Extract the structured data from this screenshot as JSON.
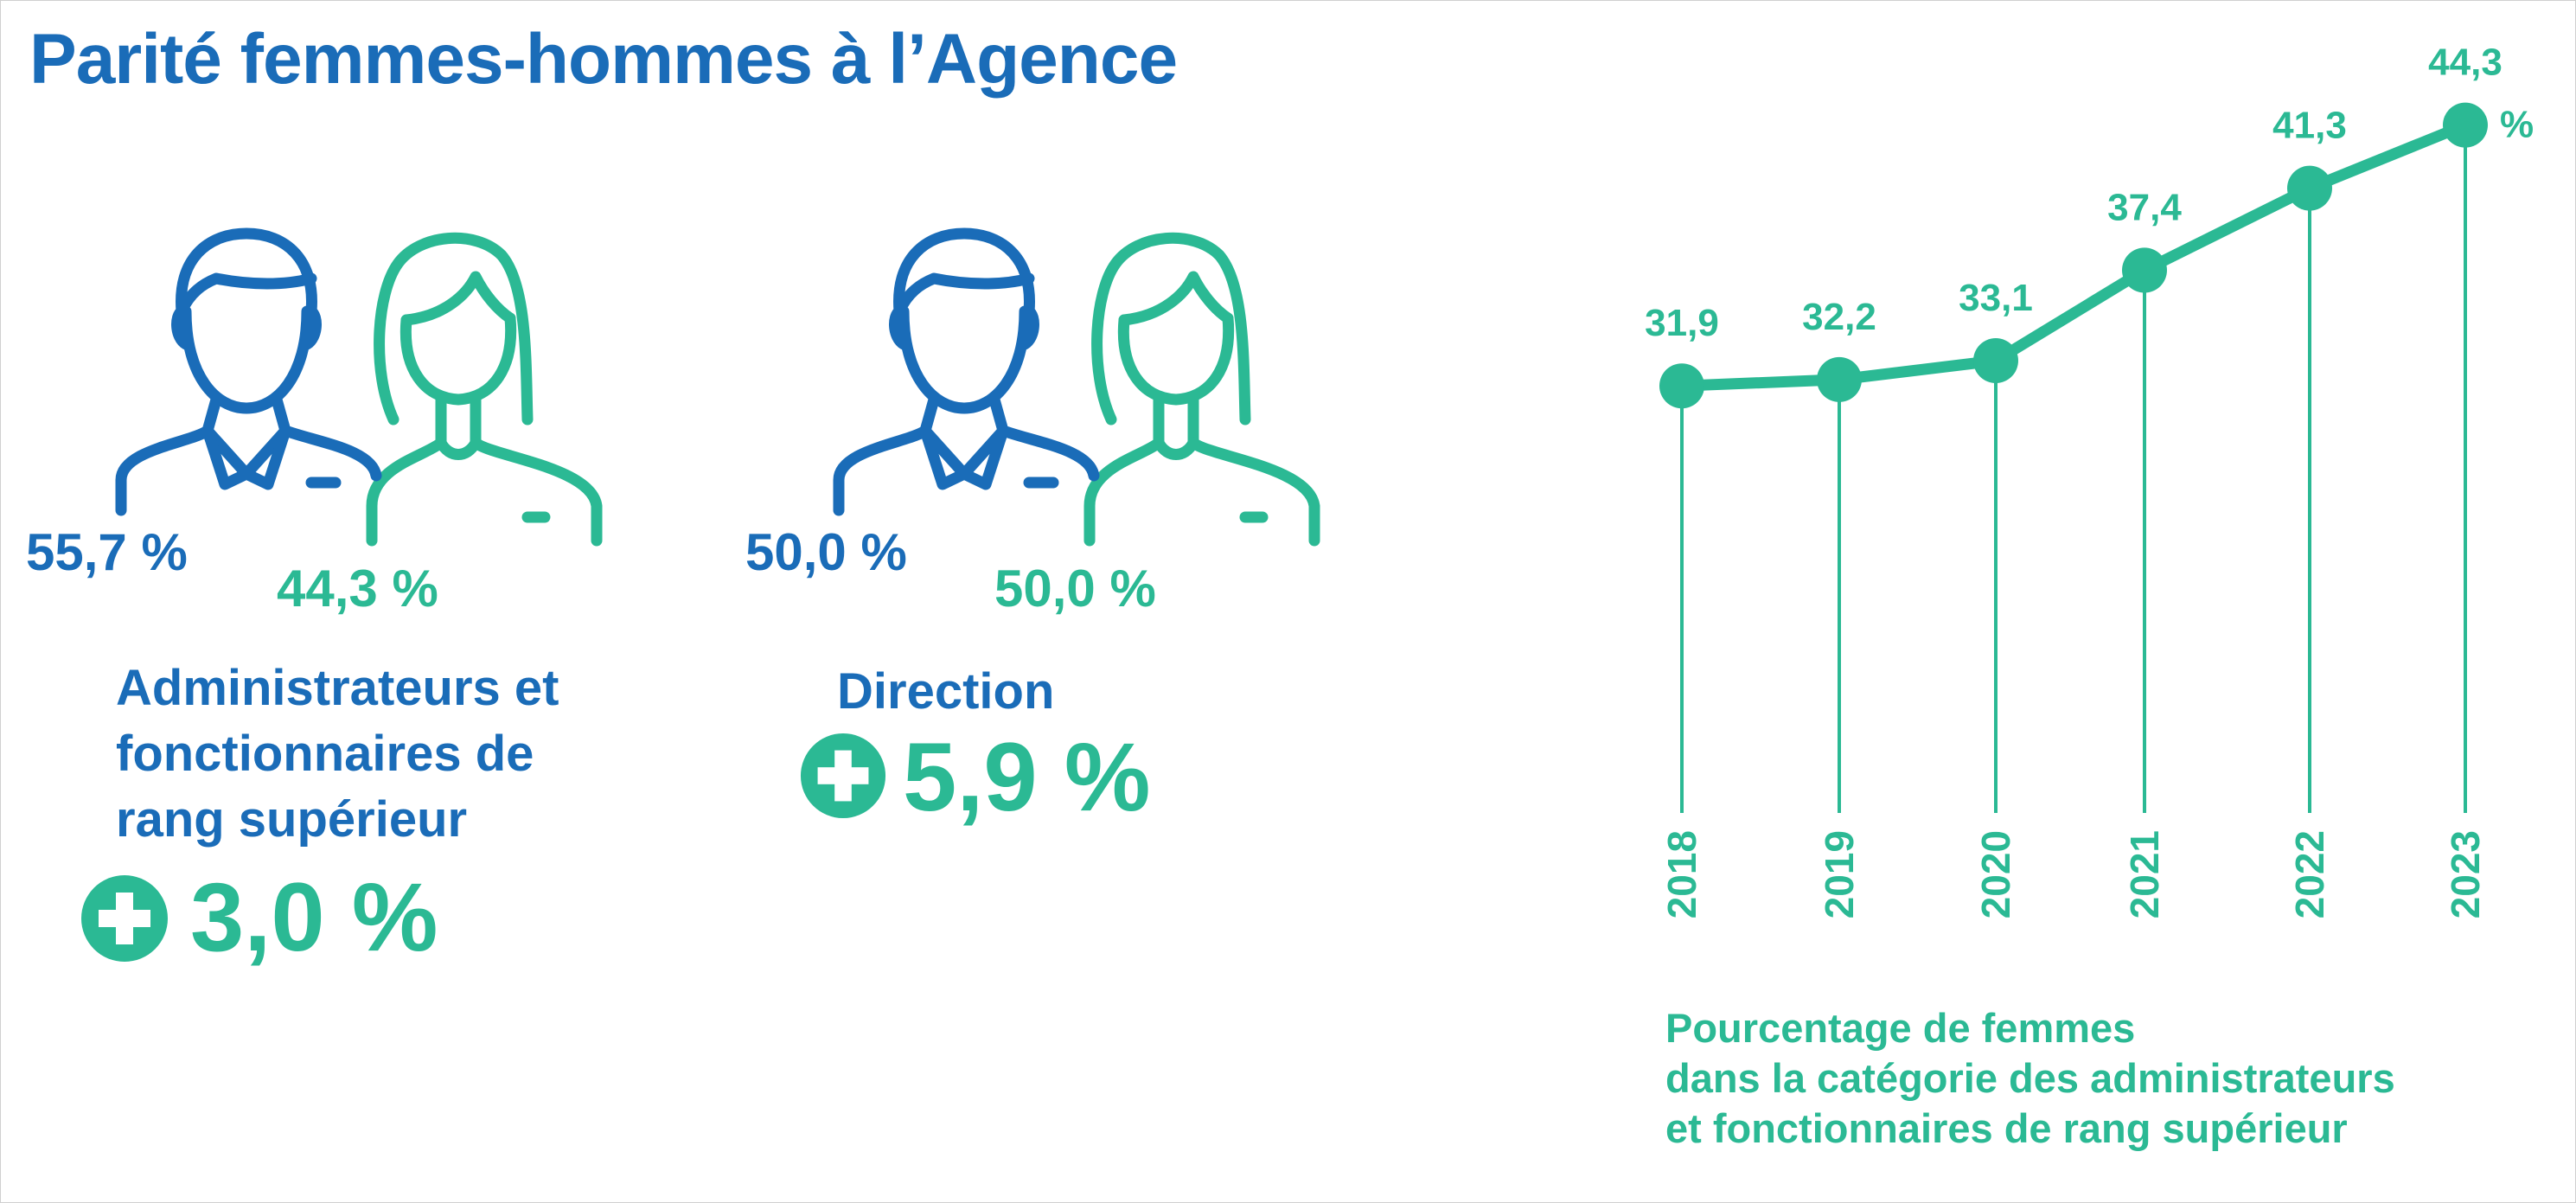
{
  "title": "Parité femmes-hommes à l’Agence",
  "colors": {
    "blue": "#1a6cb8",
    "green": "#2bb994"
  },
  "group1": {
    "men_pct": "55,7 %",
    "women_pct": "44,3 %",
    "label_lines": [
      "Administrateurs et",
      "fonctionnaires de",
      "rang supérieur"
    ],
    "change": "3,0 %",
    "icons": [
      "man-icon",
      "woman-icon",
      "plus-circle-icon"
    ]
  },
  "group2": {
    "men_pct": "50,0 %",
    "women_pct": "50,0 %",
    "label": "Direction",
    "change": "5,9 %",
    "icons": [
      "man-icon",
      "woman-icon",
      "plus-circle-icon"
    ]
  },
  "chart_data": {
    "type": "line",
    "x": [
      "2018",
      "2019",
      "2020",
      "2021",
      "2022",
      "2023"
    ],
    "values": [
      31.9,
      32.2,
      33.1,
      37.4,
      41.3,
      44.3
    ],
    "value_labels": [
      "31,9",
      "32,2",
      "33,1",
      "37,4",
      "41,3",
      "44,3"
    ],
    "unit": "%",
    "title": "",
    "caption_lines": [
      "Pourcentage de femmes",
      "dans la catégorie des administrateurs",
      "et fonctionnaires de rang supérieur"
    ],
    "grid": false,
    "color": "#2bb994"
  }
}
